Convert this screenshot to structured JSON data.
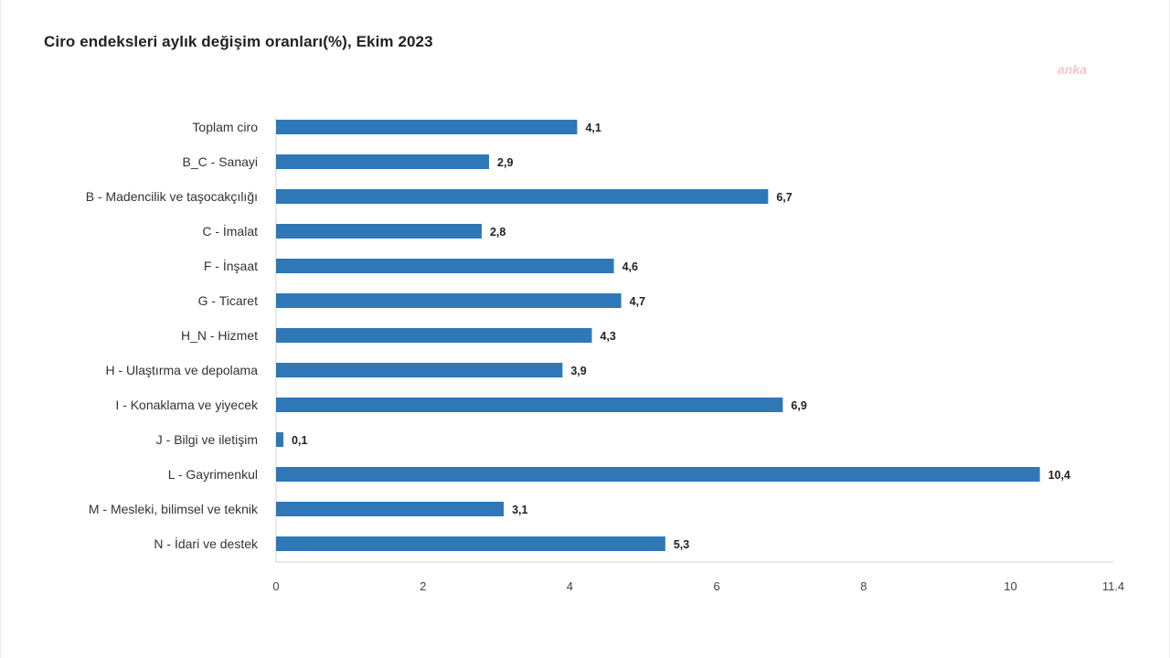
{
  "header": {
    "title": "Ciro endeksleri aylık değişim oranları(%), Ekim 2023",
    "watermark": "anka"
  },
  "colors": {
    "bar": "#2e78b7",
    "axis": "#d0d0d0"
  },
  "chart_data": {
    "type": "bar",
    "orientation": "horizontal",
    "title": "Ciro endeksleri aylık değişim oranları(%), Ekim 2023",
    "categories": [
      "Toplam ciro",
      "B_C - Sanayi",
      "B - Madencilik ve taşocakçılığı",
      "C - İmalat",
      "F - İnşaat",
      "G - Ticaret",
      "H_N - Hizmet",
      "H - Ulaştırma ve depolama",
      "I - Konaklama ve yiyecek",
      "J - Bilgi ve iletişim",
      "L - Gayrimenkul",
      "M - Mesleki, bilimsel ve teknik",
      "N - İdari ve destek"
    ],
    "values": [
      4.1,
      2.9,
      6.7,
      2.8,
      4.6,
      4.7,
      4.3,
      3.9,
      6.9,
      0.1,
      10.4,
      3.1,
      5.3
    ],
    "value_labels": [
      "4,1",
      "2,9",
      "6,7",
      "2,8",
      "4,6",
      "4,7",
      "4,3",
      "3,9",
      "6,9",
      "0,1",
      "10,4",
      "3,1",
      "5,3"
    ],
    "xlim": [
      0,
      11.4
    ],
    "xticks": [
      0,
      2,
      4,
      6,
      8,
      10,
      11.4
    ],
    "xtick_labels": [
      "0",
      "2",
      "4",
      "6",
      "8",
      "10",
      "11.4"
    ],
    "xlabel": "",
    "ylabel": "",
    "grid": false,
    "legend": "none"
  }
}
